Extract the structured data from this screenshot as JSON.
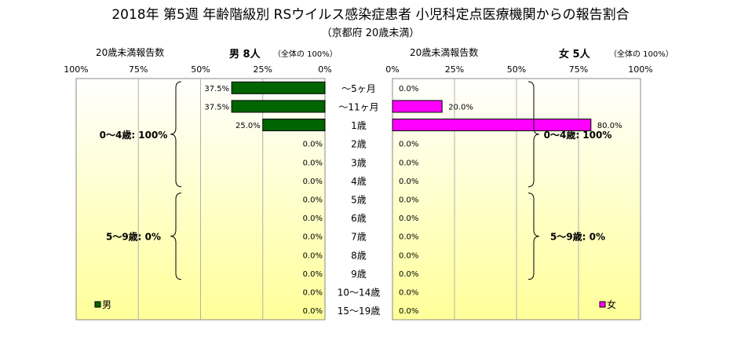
{
  "title": "2018年 第5週 年齢階級別 RSウイルス感染症患者 小児科定点医療機関からの報告割合",
  "subtitle": "（京都府 20歳未満）",
  "colors": {
    "male": "#006400",
    "female": "#FF00FF",
    "panel_top": "#FFFFFF",
    "panel_bottom": "#FFFF99"
  },
  "left_panel": {
    "header_label": "20歳未満報告数",
    "sex_label": "男 8人",
    "total_note": "（全体の 100%）",
    "legend": "男",
    "bracket_0_4": "0～4歳: 100%",
    "bracket_5_9": "5～9歳: 0%"
  },
  "right_panel": {
    "header_label": "20歳未満報告数",
    "sex_label": "女 5人",
    "total_note": "（全体の 100%）",
    "legend": "女",
    "bracket_0_4": "0～4歳: 100%",
    "bracket_5_9": "5～9歳: 0%"
  },
  "chart_data": {
    "type": "bar",
    "orientation": "horizontal",
    "layout": "population-pyramid",
    "categories": [
      "～5ヶ月",
      "～11ヶ月",
      "1歳",
      "2歳",
      "3歳",
      "4歳",
      "5歳",
      "6歳",
      "7歳",
      "8歳",
      "9歳",
      "10～14歳",
      "15～19歳"
    ],
    "axis_ticks": [
      "0%",
      "25%",
      "50%",
      "75%",
      "100%"
    ],
    "xlim": [
      0,
      100
    ],
    "unit": "%",
    "series": [
      {
        "name": "男",
        "values": [
          37.5,
          37.5,
          25.0,
          0,
          0,
          0,
          0,
          0,
          0,
          0,
          0,
          0,
          0
        ],
        "labels": [
          "37.5%",
          "37.5%",
          "25.0%",
          "0.0%",
          "0.0%",
          "0.0%",
          "0.0%",
          "0.0%",
          "0.0%",
          "0.0%",
          "0.0%",
          "0.0%",
          "0.0%"
        ]
      },
      {
        "name": "女",
        "values": [
          0,
          20.0,
          80.0,
          0,
          0,
          0,
          0,
          0,
          0,
          0,
          0,
          0,
          0
        ],
        "labels": [
          "0.0%",
          "20.0%",
          "80.0%",
          "0.0%",
          "0.0%",
          "0.0%",
          "0.0%",
          "0.0%",
          "0.0%",
          "0.0%",
          "0.0%",
          "0.0%",
          "0.0%"
        ]
      }
    ],
    "grid": true,
    "legend_position": "bottom"
  }
}
